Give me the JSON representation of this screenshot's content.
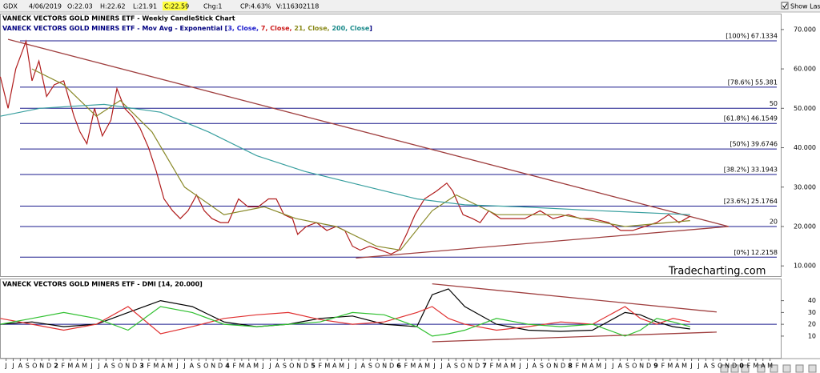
{
  "toolbar": {
    "symbol": "GDX",
    "date": "4/06/2019",
    "open": "O:22.03",
    "high": "H:22.62",
    "low": "L:21.91",
    "close": "C:22.59",
    "change": "Chg:1",
    "change_pct": "CP:4.63%",
    "volume": "V:116302118",
    "show_last": "Show Last"
  },
  "chart_data": [
    {
      "type": "line",
      "title": "VANECK VECTORS GOLD MINERS ETF - Weekly CandleStick Chart",
      "subtitle": [
        {
          "text": "VANECK VECTORS GOLD MINERS ETF - Mov Avg - Exponential [",
          "color": "#000080"
        },
        {
          "text": "3, Close, ",
          "color": "#1a1acc"
        },
        {
          "text": "7, Close, ",
          "color": "#cc1a1a"
        },
        {
          "text": "21, Close, ",
          "color": "#8a8a1a"
        },
        {
          "text": "200, Close",
          "color": "#1a8a8a"
        },
        {
          "text": "]",
          "color": "#000080"
        }
      ],
      "annotation": "Tradecharting.com",
      "xlim": [
        2011.346,
        2020.458
      ],
      "ylim": [
        7.4,
        71.8
      ],
      "yticks": [
        {
          "value": 10,
          "label": "10.000"
        },
        {
          "value": 20,
          "label": "20.000"
        },
        {
          "value": 30,
          "label": "30.000"
        },
        {
          "value": 40,
          "label": "40.000"
        },
        {
          "value": 50,
          "label": "50.000"
        },
        {
          "value": 60,
          "label": "60.000"
        },
        {
          "value": 70,
          "label": "70.000"
        }
      ],
      "levels_color": "#1a1a8c",
      "levels": [
        {
          "value": 67.1334,
          "label": "[100%] 67.1334"
        },
        {
          "value": 55.381,
          "label": "[78.6%] 55.381"
        },
        50,
        {
          "value": 46.1549,
          "label": "[61.8%] 46.1549"
        },
        {
          "value": 39.6746,
          "label": "[50%] 39.6746"
        },
        {
          "value": 33.1943,
          "label": "[38.2%] 33.1943"
        },
        {
          "value": 25.1764,
          "label": "[23.6%] 25.1764"
        },
        20,
        {
          "value": 12.2158,
          "label": "[0%] 12.2158"
        }
      ],
      "trendlines": [
        {
          "x": [
            2011.44,
            2019.85
          ],
          "y": [
            67.5,
            20
          ],
          "color": "#a04040"
        },
        {
          "x": [
            2015.5,
            2019.85
          ],
          "y": [
            12,
            20
          ],
          "color": "#a04040"
        }
      ],
      "series": [
        {
          "color": "#b01c1c",
          "x": [
            2011.35,
            2011.44,
            2011.53,
            2011.65,
            2011.72,
            2011.8,
            2011.89,
            2011.98,
            2012.09,
            2012.21,
            2012.28,
            2012.36,
            2012.45,
            2012.54,
            2012.64,
            2012.71,
            2012.8,
            2012.89,
            2012.98,
            2013.08,
            2013.17,
            2013.26,
            2013.36,
            2013.45,
            2013.54,
            2013.64,
            2013.73,
            2013.82,
            2013.92,
            2014.01,
            2014.13,
            2014.24,
            2014.36,
            2014.48,
            2014.57,
            2014.66,
            2014.76,
            2014.82,
            2014.92,
            2015.04,
            2015.16,
            2015.27,
            2015.37,
            2015.46,
            2015.55,
            2015.66,
            2015.79,
            2015.91,
            2016.0,
            2016.09,
            2016.19,
            2016.3,
            2016.44,
            2016.56,
            2016.63,
            2016.75,
            2016.86,
            2016.95,
            2017.05,
            2017.19,
            2017.33,
            2017.47,
            2017.65,
            2017.8,
            2017.98,
            2018.12,
            2018.26,
            2018.45,
            2018.59,
            2018.73,
            2018.87,
            2019.01,
            2019.15,
            2019.27,
            2019.4
          ],
          "values": [
            58,
            50,
            60,
            67,
            57,
            62,
            53,
            56,
            57,
            48,
            44,
            41,
            50,
            43,
            47,
            55,
            50,
            48,
            45,
            40,
            34,
            27,
            24,
            22,
            24,
            28,
            24,
            22,
            21,
            21,
            27,
            25,
            25,
            27,
            27,
            23,
            22,
            18,
            20,
            21,
            19,
            20,
            19,
            15,
            14,
            15,
            14,
            13,
            14,
            18,
            23,
            27,
            29,
            31,
            29,
            23,
            22,
            21,
            24,
            22,
            22,
            22,
            24,
            22,
            23,
            22,
            22,
            21,
            19,
            19,
            20,
            21,
            23,
            21,
            22.59
          ]
        },
        {
          "color": "#8a8a2a",
          "x": [
            2011.72,
            2012.09,
            2012.47,
            2012.75,
            2013.12,
            2013.5,
            2013.96,
            2014.43,
            2014.8,
            2015.27,
            2015.74,
            2016.02,
            2016.39,
            2016.67,
            2017.14,
            2017.89,
            2018.64,
            2019.4
          ],
          "values": [
            60,
            56,
            48,
            52,
            44,
            30,
            23,
            25,
            22,
            20,
            15,
            14,
            24,
            28,
            23,
            23,
            20,
            21.5
          ]
        },
        {
          "color": "#3aa0a0",
          "x": [
            2011.35,
            2011.81,
            2012.56,
            2013.22,
            2013.78,
            2014.34,
            2014.9,
            2015.46,
            2016.21,
            2016.77,
            2017.42,
            2018.35,
            2019.4
          ],
          "values": [
            48,
            50,
            51,
            49,
            44,
            38,
            34,
            31,
            27,
            25.5,
            25,
            24,
            23
          ]
        }
      ]
    },
    {
      "type": "line",
      "title": "VANECK VECTORS GOLD MINERS ETF - DMI [14, 20.000]",
      "xlim": [
        2011.346,
        2020.458
      ],
      "ylim": [
        -7,
        56
      ],
      "yticks": [
        10,
        20,
        30,
        40
      ],
      "levels_color": "#1a1a8c",
      "levels": [
        20
      ],
      "trendlines": [
        {
          "x": [
            2016.39,
            2019.71
          ],
          "y": [
            54.2,
            30.4
          ],
          "color": "#a04040"
        },
        {
          "x": [
            2016.39,
            2019.71
          ],
          "y": [
            5.2,
            13.4
          ],
          "color": "#a04040"
        }
      ],
      "xticks": [
        {
          "value": 2011.417,
          "label": "J"
        },
        {
          "value": 2011.5,
          "label": "J"
        },
        {
          "value": 2011.583,
          "label": "A"
        },
        {
          "value": 2011.667,
          "label": "S"
        },
        {
          "value": 2011.75,
          "label": "O"
        },
        {
          "value": 2011.833,
          "label": "N"
        },
        {
          "value": 2011.917,
          "label": "D"
        },
        {
          "value": 2012,
          "label": "2"
        },
        {
          "value": 2012.083,
          "label": "F"
        },
        {
          "value": 2012.167,
          "label": "M"
        },
        {
          "value": 2012.25,
          "label": "A"
        },
        {
          "value": 2012.333,
          "label": "M"
        },
        {
          "value": 2012.417,
          "label": "J"
        },
        {
          "value": 2012.5,
          "label": "J"
        },
        {
          "value": 2012.583,
          "label": "A"
        },
        {
          "value": 2012.667,
          "label": "S"
        },
        {
          "value": 2012.75,
          "label": "O"
        },
        {
          "value": 2012.833,
          "label": "N"
        },
        {
          "value": 2012.917,
          "label": "D"
        },
        {
          "value": 2013,
          "label": "3"
        },
        {
          "value": 2013.083,
          "label": "F"
        },
        {
          "value": 2013.167,
          "label": "M"
        },
        {
          "value": 2013.25,
          "label": "A"
        },
        {
          "value": 2013.333,
          "label": "M"
        },
        {
          "value": 2013.417,
          "label": "J"
        },
        {
          "value": 2013.5,
          "label": "J"
        },
        {
          "value": 2013.583,
          "label": "A"
        },
        {
          "value": 2013.667,
          "label": "S"
        },
        {
          "value": 2013.75,
          "label": "O"
        },
        {
          "value": 2013.833,
          "label": "N"
        },
        {
          "value": 2013.917,
          "label": "D"
        },
        {
          "value": 2014,
          "label": "4"
        },
        {
          "value": 2014.083,
          "label": "F"
        },
        {
          "value": 2014.167,
          "label": "M"
        },
        {
          "value": 2014.25,
          "label": "A"
        },
        {
          "value": 2014.333,
          "label": "M"
        },
        {
          "value": 2014.417,
          "label": "J"
        },
        {
          "value": 2014.5,
          "label": "J"
        },
        {
          "value": 2014.583,
          "label": "A"
        },
        {
          "value": 2014.667,
          "label": "S"
        },
        {
          "value": 2014.75,
          "label": "O"
        },
        {
          "value": 2014.833,
          "label": "N"
        },
        {
          "value": 2014.917,
          "label": "D"
        },
        {
          "value": 2015,
          "label": "5"
        },
        {
          "value": 2015.083,
          "label": "F"
        },
        {
          "value": 2015.167,
          "label": "M"
        },
        {
          "value": 2015.25,
          "label": "A"
        },
        {
          "value": 2015.333,
          "label": "M"
        },
        {
          "value": 2015.417,
          "label": "J"
        },
        {
          "value": 2015.5,
          "label": "J"
        },
        {
          "value": 2015.583,
          "label": "A"
        },
        {
          "value": 2015.667,
          "label": "S"
        },
        {
          "value": 2015.75,
          "label": "O"
        },
        {
          "value": 2015.833,
          "label": "N"
        },
        {
          "value": 2015.917,
          "label": "D"
        },
        {
          "value": 2016,
          "label": "6"
        },
        {
          "value": 2016.083,
          "label": "F"
        },
        {
          "value": 2016.167,
          "label": "M"
        },
        {
          "value": 2016.25,
          "label": "A"
        },
        {
          "value": 2016.333,
          "label": "M"
        },
        {
          "value": 2016.417,
          "label": "J"
        },
        {
          "value": 2016.5,
          "label": "J"
        },
        {
          "value": 2016.583,
          "label": "A"
        },
        {
          "value": 2016.667,
          "label": "S"
        },
        {
          "value": 2016.75,
          "label": "O"
        },
        {
          "value": 2016.833,
          "label": "N"
        },
        {
          "value": 2016.917,
          "label": "D"
        },
        {
          "value": 2017,
          "label": "7"
        },
        {
          "value": 2017.083,
          "label": "F"
        },
        {
          "value": 2017.167,
          "label": "M"
        },
        {
          "value": 2017.25,
          "label": "A"
        },
        {
          "value": 2017.333,
          "label": "M"
        },
        {
          "value": 2017.417,
          "label": "J"
        },
        {
          "value": 2017.5,
          "label": "J"
        },
        {
          "value": 2017.583,
          "label": "A"
        },
        {
          "value": 2017.667,
          "label": "S"
        },
        {
          "value": 2017.75,
          "label": "O"
        },
        {
          "value": 2017.833,
          "label": "N"
        },
        {
          "value": 2017.917,
          "label": "D"
        },
        {
          "value": 2018,
          "label": "8"
        },
        {
          "value": 2018.083,
          "label": "F"
        },
        {
          "value": 2018.167,
          "label": "M"
        },
        {
          "value": 2018.25,
          "label": "A"
        },
        {
          "value": 2018.333,
          "label": "M"
        },
        {
          "value": 2018.417,
          "label": "J"
        },
        {
          "value": 2018.5,
          "label": "J"
        },
        {
          "value": 2018.583,
          "label": "A"
        },
        {
          "value": 2018.667,
          "label": "S"
        },
        {
          "value": 2018.75,
          "label": "O"
        },
        {
          "value": 2018.833,
          "label": "N"
        },
        {
          "value": 2018.917,
          "label": "D"
        },
        {
          "value": 2019,
          "label": "9"
        },
        {
          "value": 2019.083,
          "label": "F"
        },
        {
          "value": 2019.167,
          "label": "M"
        },
        {
          "value": 2019.25,
          "label": "A"
        },
        {
          "value": 2019.333,
          "label": "M"
        },
        {
          "value": 2019.417,
          "label": "J"
        },
        {
          "value": 2019.5,
          "label": "J"
        },
        {
          "value": 2019.583,
          "label": "A"
        },
        {
          "value": 2019.667,
          "label": "S"
        },
        {
          "value": 2019.75,
          "label": "O"
        },
        {
          "value": 2019.833,
          "label": "N"
        },
        {
          "value": 2019.917,
          "label": "D"
        },
        {
          "value": 2020,
          "label": "0"
        },
        {
          "value": 2020.083,
          "label": "F"
        },
        {
          "value": 2020.167,
          "label": "M"
        },
        {
          "value": 2020.25,
          "label": "A"
        },
        {
          "value": 2020.333,
          "label": "M"
        }
      ],
      "series": [
        {
          "color": "#000000",
          "x": [
            2011.35,
            2011.72,
            2012.09,
            2012.47,
            2012.84,
            2013.22,
            2013.59,
            2013.96,
            2014.34,
            2014.71,
            2015.08,
            2015.46,
            2015.83,
            2016.21,
            2016.39,
            2016.58,
            2016.77,
            2017.14,
            2017.51,
            2017.89,
            2018.26,
            2018.64,
            2018.82,
            2019.01,
            2019.2,
            2019.4
          ],
          "values": [
            20,
            22,
            18,
            20,
            30,
            40,
            35,
            22,
            18,
            20,
            25,
            27,
            20,
            18,
            45,
            50,
            35,
            20,
            15,
            14,
            15,
            30,
            28,
            22,
            18,
            16
          ]
        },
        {
          "color": "#e03030",
          "x": [
            2011.35,
            2011.72,
            2012.09,
            2012.47,
            2012.84,
            2013.22,
            2013.59,
            2013.96,
            2014.34,
            2014.71,
            2015.08,
            2015.46,
            2015.83,
            2016.21,
            2016.39,
            2016.58,
            2016.77,
            2017.14,
            2017.51,
            2017.89,
            2018.26,
            2018.64,
            2018.82,
            2019.01,
            2019.2,
            2019.4
          ],
          "values": [
            25,
            20,
            15,
            20,
            35,
            12,
            18,
            25,
            28,
            30,
            24,
            20,
            22,
            30,
            35,
            25,
            20,
            15,
            18,
            22,
            20,
            35,
            25,
            20,
            25,
            22
          ]
        },
        {
          "color": "#30c030",
          "x": [
            2011.35,
            2011.72,
            2012.09,
            2012.47,
            2012.84,
            2013.22,
            2013.59,
            2013.96,
            2014.34,
            2014.71,
            2015.08,
            2015.46,
            2015.83,
            2016.21,
            2016.39,
            2016.58,
            2016.77,
            2017.14,
            2017.51,
            2017.89,
            2018.26,
            2018.64,
            2018.82,
            2019.01,
            2019.2,
            2019.4
          ],
          "values": [
            20,
            25,
            30,
            25,
            15,
            35,
            30,
            20,
            18,
            20,
            22,
            30,
            28,
            18,
            10,
            12,
            15,
            25,
            20,
            18,
            20,
            10,
            15,
            25,
            22,
            18
          ]
        }
      ]
    }
  ]
}
